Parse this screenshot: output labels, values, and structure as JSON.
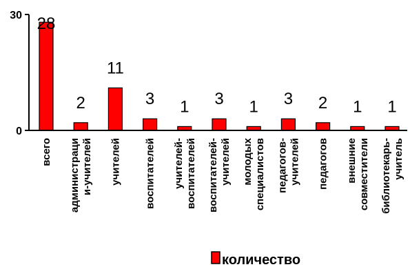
{
  "chart_data": {
    "type": "bar",
    "categories": [
      [
        "всего"
      ],
      [
        "администраци",
        "и-учителей"
      ],
      [
        "учителей"
      ],
      [
        "воспитателей"
      ],
      [
        "учителей-",
        "воспитателей"
      ],
      [
        "воспитателей-",
        "учителей"
      ],
      [
        "молодых",
        "специалистов"
      ],
      [
        "педагогов-",
        "учителей"
      ],
      [
        "педагогов"
      ],
      [
        "внешние",
        "совместители"
      ],
      [
        "библиотекарь-",
        "учитель"
      ]
    ],
    "series": [
      {
        "name": "количество",
        "values": [
          28,
          2,
          11,
          3,
          1,
          3,
          1,
          3,
          2,
          1,
          1
        ],
        "color": "#ff0000"
      }
    ],
    "data_labels": [
      "28",
      "2",
      "11",
      "3",
      "1",
      "3",
      "1",
      "3",
      "2",
      "1",
      "1"
    ],
    "y_ticks": [
      "0",
      "30"
    ],
    "ylim": [
      0,
      30
    ],
    "grid": false,
    "legend": "bottom"
  }
}
